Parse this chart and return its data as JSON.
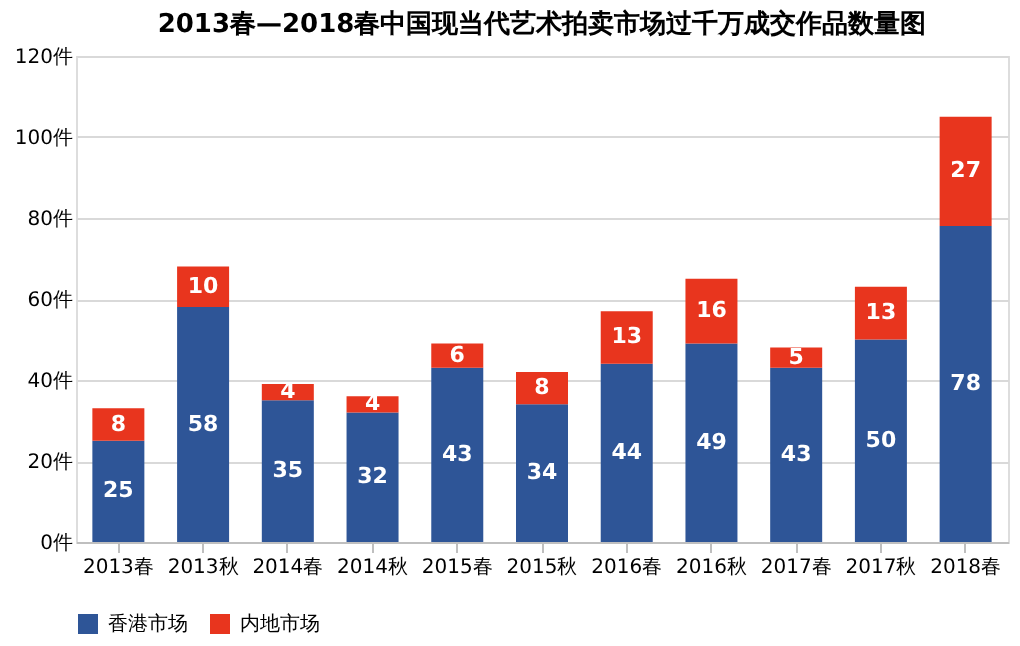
{
  "chart_data": {
    "type": "bar",
    "title": "2013春—2018春中国现当代艺术拍卖市场过千万成交作品数量图",
    "categories": [
      "2013春",
      "2013秋",
      "2014春",
      "2014秋",
      "2015春",
      "2015秋",
      "2016春",
      "2016秋",
      "2017春",
      "2017秋",
      "2018春"
    ],
    "stacked": true,
    "data_labels": true,
    "grid": "y",
    "legend": "bottom",
    "ylim": [
      0,
      120
    ],
    "yticks": [
      {
        "value": 0,
        "label": "0件"
      },
      {
        "value": 20,
        "label": "20件"
      },
      {
        "value": 40,
        "label": "40件"
      },
      {
        "value": 60,
        "label": "60件"
      },
      {
        "value": 80,
        "label": "80件"
      },
      {
        "value": 100,
        "label": "100件"
      },
      {
        "value": 120,
        "label": "120件"
      }
    ],
    "series": [
      {
        "name": "香港市场",
        "color": "#2e5597",
        "values": [
          25,
          58,
          35,
          32,
          43,
          34,
          44,
          49,
          43,
          50,
          78
        ]
      },
      {
        "name": "内地市场",
        "color": "#e8351e",
        "values": [
          8,
          10,
          4,
          4,
          6,
          8,
          13,
          16,
          5,
          13,
          27
        ]
      }
    ]
  }
}
